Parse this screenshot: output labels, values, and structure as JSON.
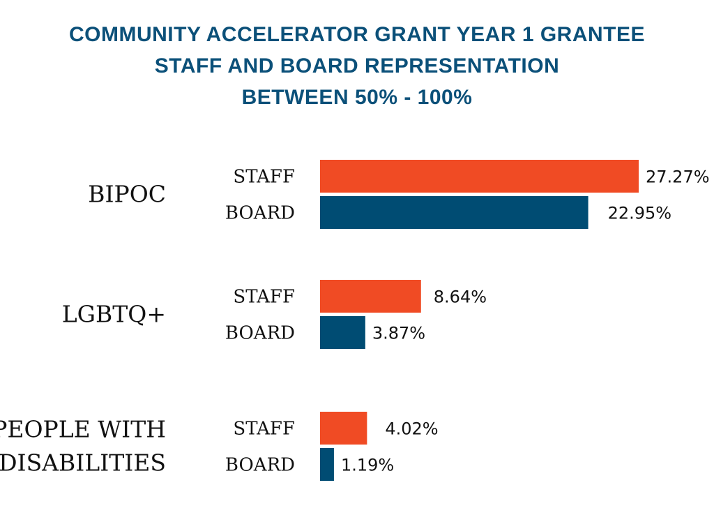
{
  "chart_data": {
    "type": "bar",
    "orientation": "horizontal",
    "title": [
      "COMMUNITY ACCELERATOR GRANT YEAR 1 GRANTEE",
      "STAFF AND BOARD REPRESENTATION",
      "BETWEEN 50% - 100%"
    ],
    "categories": [
      [
        "BIPOC"
      ],
      [
        "LGBTQ+"
      ],
      [
        "PEOPLE WITH",
        "DISABILITIES"
      ]
    ],
    "series": [
      {
        "name": "STAFF",
        "color": "#f04b24",
        "values": [
          27.27,
          8.64,
          4.02
        ],
        "labels": [
          "27.27%",
          "8.64%",
          "4.02%"
        ]
      },
      {
        "name": "BOARD",
        "color": "#004c73",
        "values": [
          22.95,
          3.87,
          1.19
        ],
        "labels": [
          "22.95%",
          "3.87%",
          "1.19%"
        ]
      }
    ],
    "xlim": [
      0,
      27.27
    ],
    "grid": false,
    "title_color": "#0b5079",
    "text_color": "#111111"
  }
}
